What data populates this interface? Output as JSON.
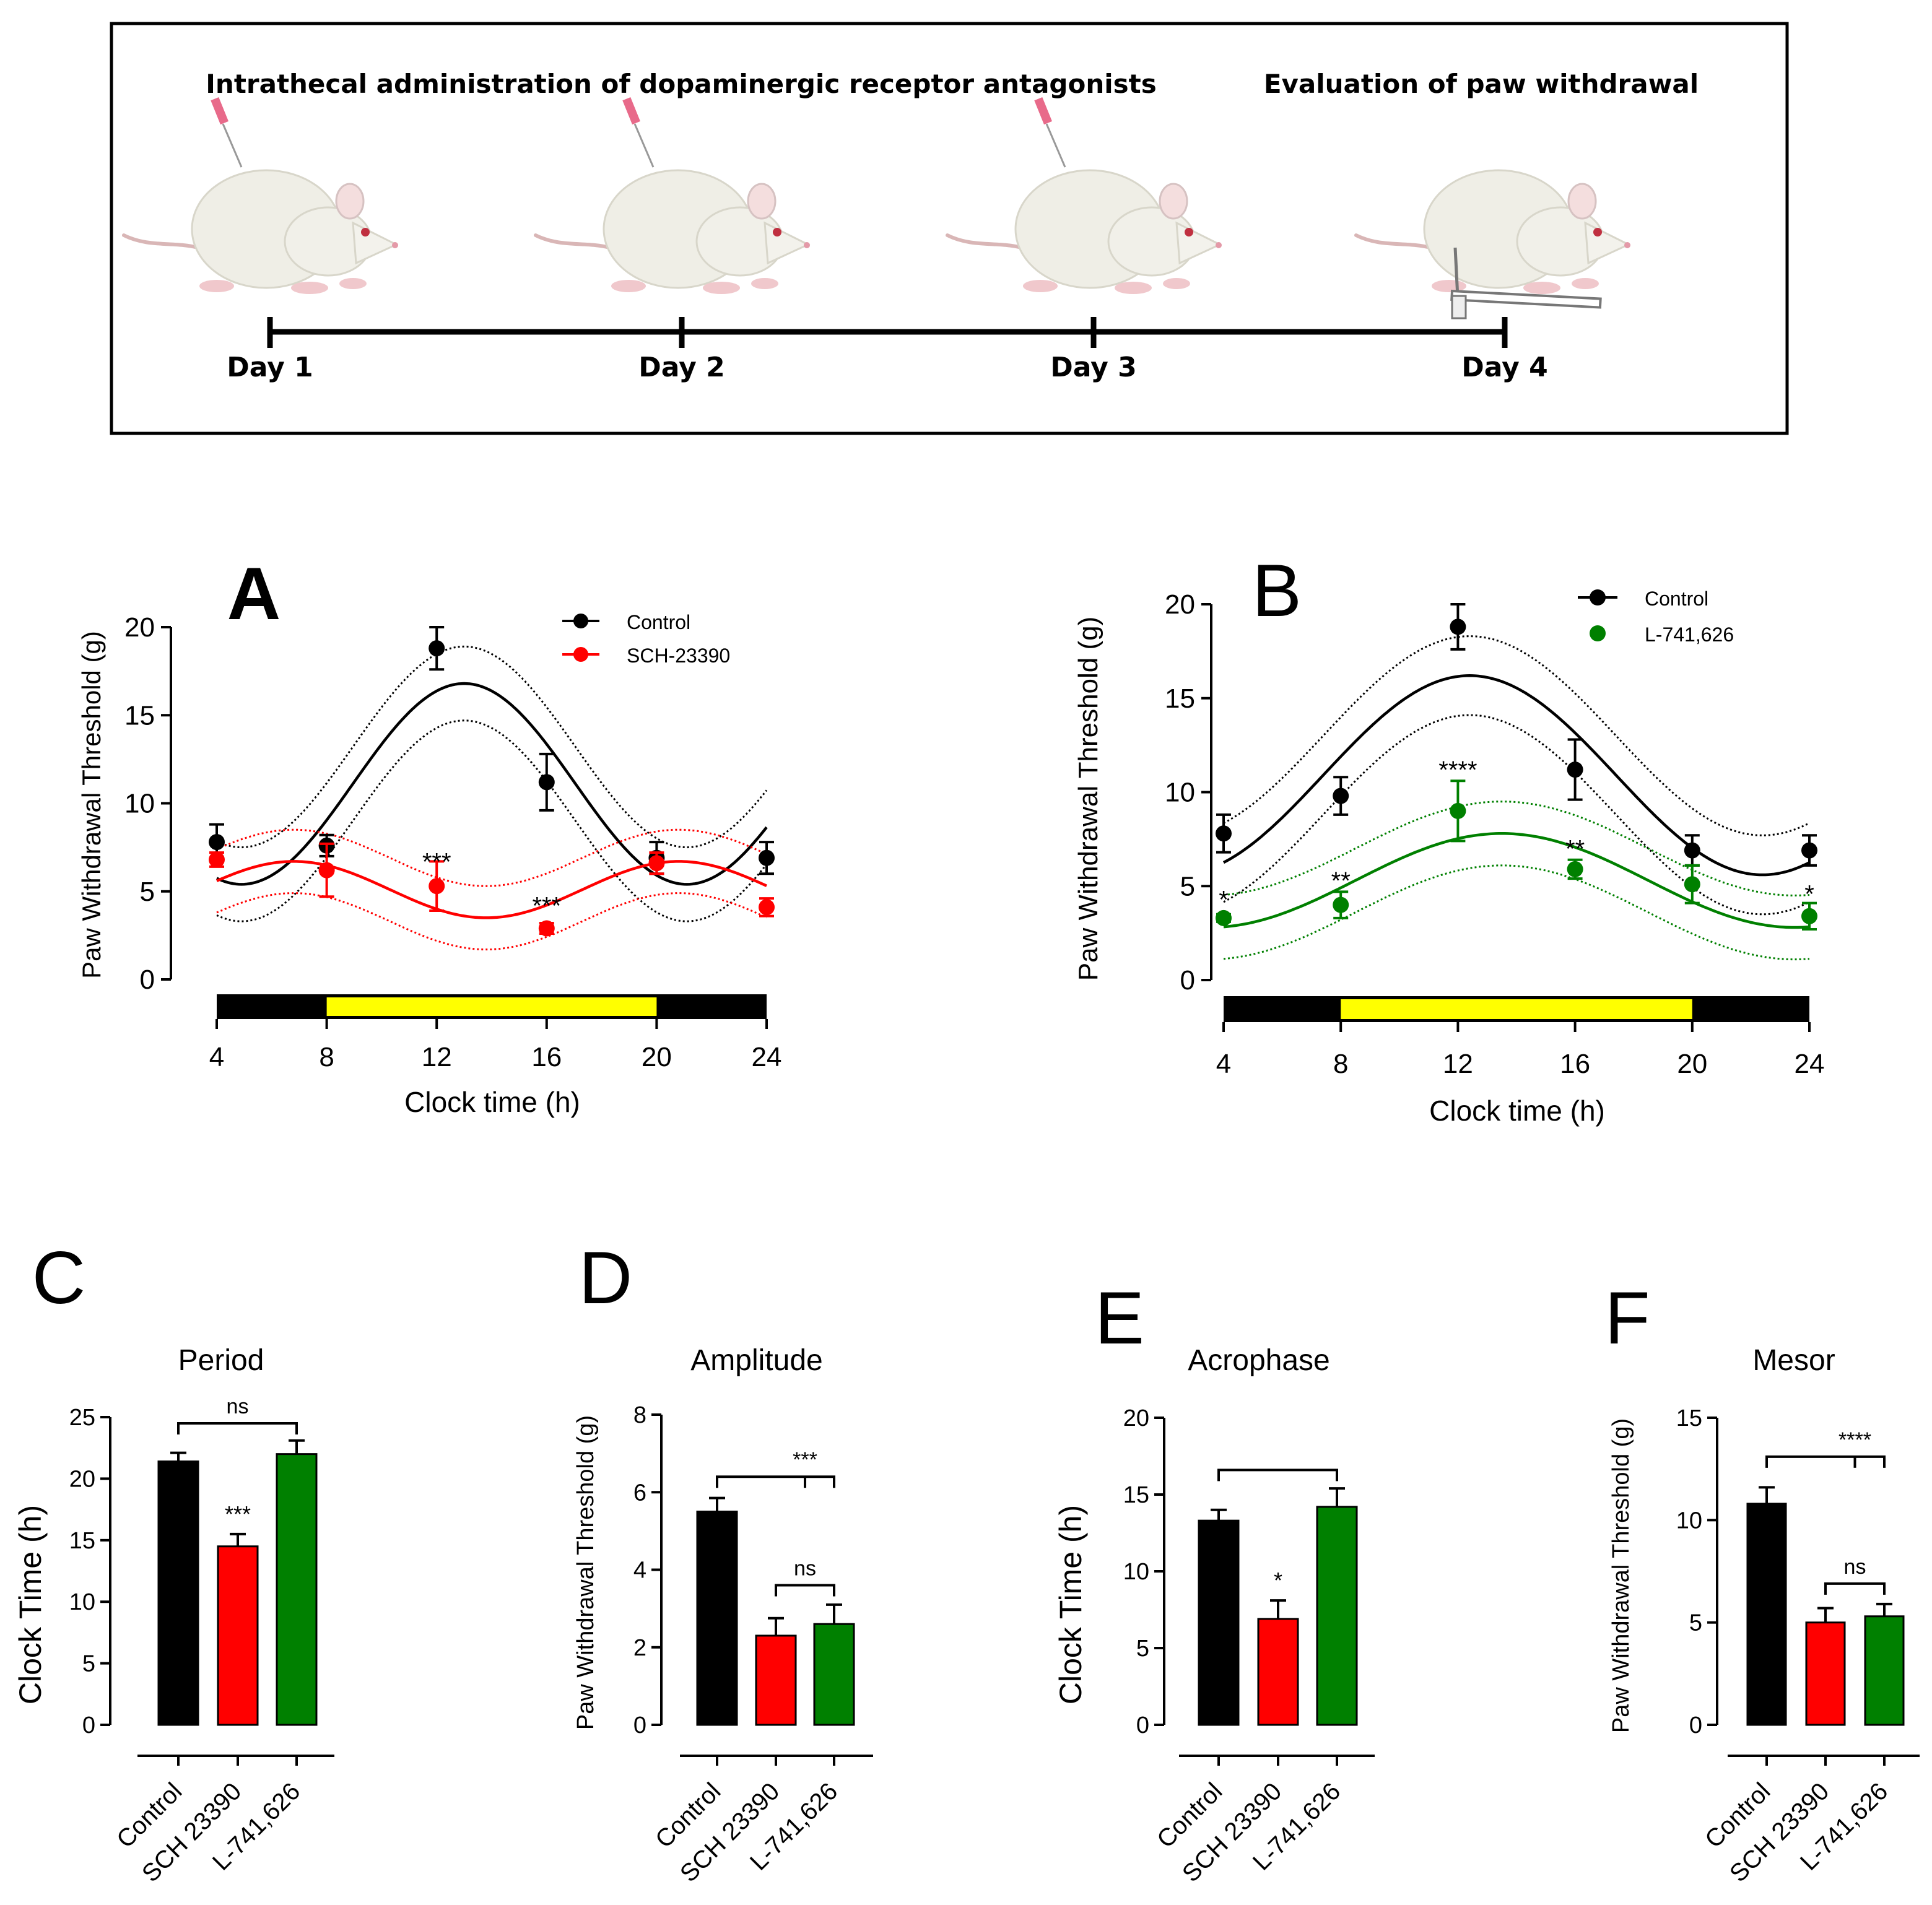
{
  "colors": {
    "control": "#000000",
    "sch": "#ff0000",
    "l741": "#008000",
    "light_phase": "#ffff00",
    "dark_phase": "#000000"
  },
  "timeline": {
    "title_left": "Intrathecal administration of dopaminergic receptor antagonists",
    "title_right": "Evaluation of paw withdrawal",
    "days": [
      "Day 1",
      "Day 2",
      "Day 3",
      "Day 4"
    ]
  },
  "chart_data": [
    {
      "id": "A",
      "type": "scatter",
      "panel_label": "A",
      "xlabel": "Clock time (h)",
      "ylabel": "Paw Withdrawal Threshold (g)",
      "xlim": [
        4,
        24
      ],
      "ylim": [
        0,
        20
      ],
      "xticks": [
        4,
        8,
        12,
        16,
        20,
        24
      ],
      "yticks": [
        0,
        5,
        10,
        15,
        20
      ],
      "light_phase": [
        8,
        20
      ],
      "legend_position": "top-right",
      "series": [
        {
          "name": "Control",
          "color": "#000000",
          "x": [
            4,
            8,
            12,
            16,
            20,
            24
          ],
          "y": [
            7.8,
            7.6,
            18.8,
            11.2,
            6.9,
            6.9
          ],
          "err": [
            1.0,
            0.6,
            1.2,
            1.6,
            0.9,
            0.9
          ],
          "fit": {
            "mesor": 11.1,
            "amplitude": 5.7,
            "acrophase": 13.0,
            "period": 16.2,
            "band": 2.1
          }
        },
        {
          "name": "SCH-23390",
          "color": "#ff0000",
          "x": [
            4,
            8,
            12,
            16,
            20,
            24
          ],
          "y": [
            6.8,
            6.2,
            5.3,
            2.9,
            6.6,
            4.1
          ],
          "err": [
            0.4,
            1.5,
            1.4,
            0.3,
            0.6,
            0.5
          ],
          "fit": {
            "mesor": 5.1,
            "amplitude": 1.6,
            "acrophase": 6.8,
            "period": 14.0,
            "band": 1.8
          }
        }
      ],
      "annotations": [
        {
          "x": 12,
          "y": 6.7,
          "text": "***"
        },
        {
          "x": 16,
          "y": 4.2,
          "text": "***"
        }
      ]
    },
    {
      "id": "B",
      "type": "scatter",
      "panel_label": "B",
      "xlabel": "Clock time (h)",
      "ylabel": "Paw Withdrawal Threshold (g)",
      "xlim": [
        4,
        24
      ],
      "ylim": [
        0,
        20
      ],
      "xticks": [
        4,
        8,
        12,
        16,
        20,
        24
      ],
      "yticks": [
        0,
        5,
        10,
        15,
        20
      ],
      "light_phase": [
        8,
        20
      ],
      "legend_position": "top-right",
      "series": [
        {
          "name": "Control",
          "color": "#000000",
          "x": [
            4,
            8,
            12,
            16,
            20,
            24
          ],
          "y": [
            7.8,
            9.8,
            18.8,
            11.2,
            6.9,
            6.9
          ],
          "err": [
            1.0,
            1.0,
            1.2,
            1.6,
            0.8,
            0.8
          ],
          "fit": {
            "mesor": 10.9,
            "amplitude": 5.3,
            "acrophase": 12.4,
            "period": 20.0,
            "band": 2.1
          }
        },
        {
          "name": "L-741,626",
          "color": "#008000",
          "x": [
            4,
            8,
            12,
            16,
            20,
            24
          ],
          "y": [
            3.3,
            4.0,
            9.0,
            5.9,
            5.1,
            3.4
          ],
          "err": [
            0.2,
            0.7,
            1.6,
            0.5,
            1.0,
            0.7
          ],
          "fit": {
            "mesor": 5.3,
            "amplitude": 2.5,
            "acrophase": 13.5,
            "period": 20.0,
            "band": 1.7
          }
        }
      ],
      "annotations": [
        {
          "x": 4,
          "y": 4.3,
          "text": "*"
        },
        {
          "x": 8,
          "y": 5.3,
          "text": "**"
        },
        {
          "x": 12,
          "y": 11.2,
          "text": "****"
        },
        {
          "x": 16,
          "y": 7.0,
          "text": "**"
        },
        {
          "x": 24,
          "y": 4.6,
          "text": "*"
        }
      ]
    },
    {
      "id": "C",
      "type": "bar",
      "panel_label": "C",
      "title": "Period",
      "categories": [
        "Control",
        "SCH 23390",
        "L-741,626"
      ],
      "values": [
        21.4,
        14.5,
        22.0
      ],
      "err": [
        0.7,
        1.0,
        1.1
      ],
      "colors": [
        "#000000",
        "#ff0000",
        "#008000"
      ],
      "ylabel": "Clock Time (h)",
      "ylim": [
        0,
        25
      ],
      "yticks": [
        0,
        5,
        10,
        15,
        20,
        25
      ],
      "bar_annotations": [
        "",
        "***",
        ""
      ],
      "brackets": [
        {
          "from": 0,
          "to": 2,
          "y": 24.5,
          "text": "ns",
          "type": "plain"
        }
      ]
    },
    {
      "id": "D",
      "type": "bar",
      "panel_label": "D",
      "title": "Amplitude",
      "categories": [
        "Control",
        "SCH 23390",
        "L-741,626"
      ],
      "values": [
        5.5,
        2.3,
        2.6
      ],
      "err": [
        0.35,
        0.45,
        0.5
      ],
      "colors": [
        "#000000",
        "#ff0000",
        "#008000"
      ],
      "ylabel": "Paw Withdrawal Threshold (g)",
      "ylim": [
        0,
        8
      ],
      "yticks": [
        0,
        2,
        4,
        6,
        8
      ],
      "bar_annotations": [
        "",
        "",
        ""
      ],
      "brackets": [
        {
          "from": 0,
          "to": 2,
          "y": 6.4,
          "text": "***",
          "type": "branched"
        },
        {
          "from": 1,
          "to": 2,
          "y": 3.6,
          "text": "ns",
          "type": "plain"
        }
      ]
    },
    {
      "id": "E",
      "type": "bar",
      "panel_label": "E",
      "title": "Acrophase",
      "categories": [
        "Control",
        "SCH 23390",
        "L-741,626"
      ],
      "values": [
        13.3,
        6.9,
        14.2
      ],
      "err": [
        0.7,
        1.2,
        1.2
      ],
      "colors": [
        "#000000",
        "#ff0000",
        "#008000"
      ],
      "ylabel": "Clock Time (h)",
      "ylim": [
        0,
        20
      ],
      "yticks": [
        0,
        5,
        10,
        15,
        20
      ],
      "bar_annotations": [
        "",
        "*",
        ""
      ],
      "brackets": [
        {
          "from": 0,
          "to": 2,
          "y": 16.6,
          "text": "",
          "type": "plain"
        }
      ]
    },
    {
      "id": "F",
      "type": "bar",
      "panel_label": "F",
      "title": "Mesor",
      "categories": [
        "Control",
        "SCH 23390",
        "L-741,626"
      ],
      "values": [
        10.8,
        5.0,
        5.3
      ],
      "err": [
        0.8,
        0.7,
        0.6
      ],
      "colors": [
        "#000000",
        "#ff0000",
        "#008000"
      ],
      "ylabel": "Paw Withdrawal Threshold (g)",
      "ylim": [
        0,
        15
      ],
      "yticks": [
        0,
        5,
        10,
        15
      ],
      "bar_annotations": [
        "",
        "",
        ""
      ],
      "brackets": [
        {
          "from": 0,
          "to": 2,
          "y": 13.1,
          "text": "****",
          "type": "branched"
        },
        {
          "from": 1,
          "to": 2,
          "y": 6.9,
          "text": "ns",
          "type": "plain"
        }
      ]
    }
  ]
}
